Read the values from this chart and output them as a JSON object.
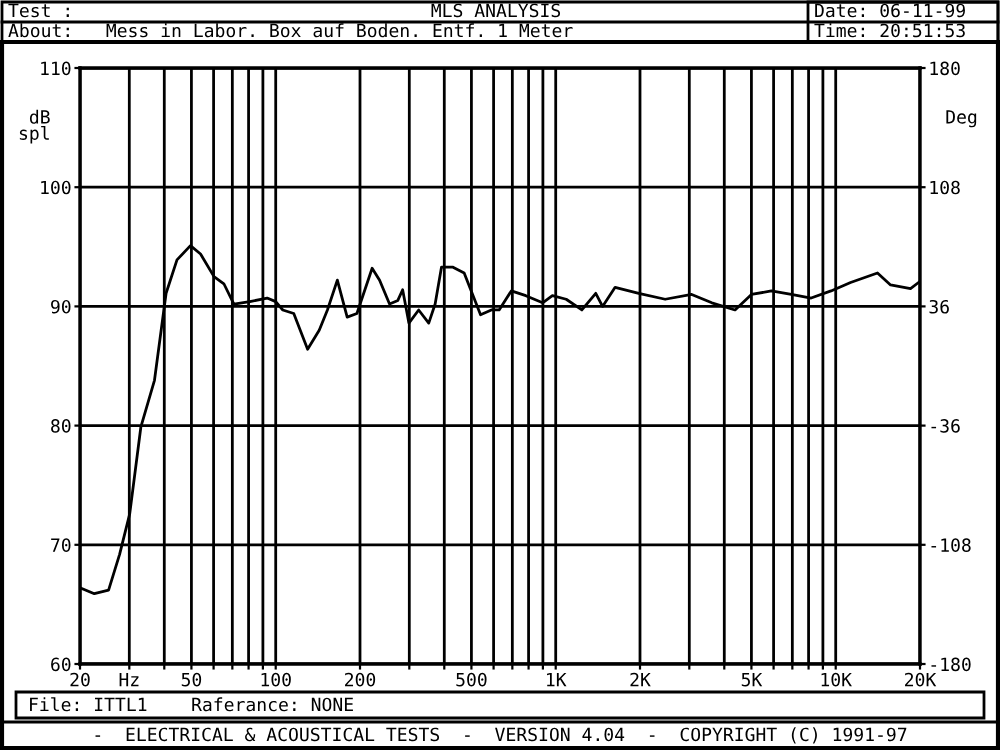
{
  "chart_data": {
    "type": "line",
    "title": "MLS ANALYSIS",
    "xlabel": null,
    "ylabel": "dB\nspl",
    "y2label": "Deg",
    "annotations": [
      "Test :",
      "About:   Mess in Labor. Box auf Boden. Entf. 1 Meter",
      "Date: 06-11-99",
      "Time: 20:51:53",
      "File: ITTL1    Raferance: NONE",
      "-  ELECTRICAL & ACOUSTICAL TESTS  -  VERSION 4.04  -  COPYRIGHT (C) 1991-97"
    ],
    "series": [
      {
        "color": "#000000",
        "x": [
          20,
          22.5,
          25.3,
          27.7,
          30.1,
          33.0,
          36.9,
          40.6,
          44.4,
          49.6,
          53.9,
          60.2,
          65.3,
          70.9,
          80.8,
          93.2,
          100,
          106,
          116,
          130,
          143,
          153,
          166,
          180,
          195,
          221,
          235,
          255,
          273,
          284,
          299,
          324,
          352,
          371,
          391,
          428,
          471,
          539,
          589,
          628,
          694,
          782,
          898,
          973,
          1090,
          1240,
          1390,
          1470,
          1630,
          1980,
          2460,
          3060,
          3610,
          4370,
          5000,
          5890,
          6940,
          8170,
          9620,
          11300,
          14100,
          15700,
          18500,
          20000
        ],
        "values": [
          66.4,
          65.9,
          66.2,
          69.2,
          72.6,
          79.9,
          83.8,
          91.1,
          93.9,
          95.1,
          94.4,
          92.5,
          91.9,
          90.2,
          90.4,
          90.7,
          90.4,
          89.7,
          89.4,
          86.4,
          88.0,
          89.7,
          92.2,
          89.1,
          89.4,
          93.2,
          92.2,
          90.2,
          90.5,
          91.4,
          88.6,
          89.7,
          88.6,
          90.2,
          93.3,
          93.3,
          92.8,
          89.3,
          89.7,
          89.7,
          91.3,
          90.9,
          90.3,
          90.9,
          90.6,
          89.7,
          91.1,
          90.0,
          91.6,
          91.1,
          90.6,
          91.0,
          90.3,
          89.7,
          91.0,
          91.3,
          91.0,
          90.7,
          91.3,
          92.0,
          92.8,
          91.8,
          91.5,
          92.1
        ]
      }
    ],
    "log": "x",
    "xlim": [
      20,
      20000
    ],
    "xticks": [
      20,
      {
        "value": 30,
        "label": "Hz"
      },
      {
        "value": 40,
        "label": null
      },
      50,
      {
        "value": 60,
        "label": null
      },
      {
        "value": 70,
        "label": null
      },
      {
        "value": 80,
        "label": null
      },
      {
        "value": 90,
        "label": null
      },
      100,
      200,
      {
        "value": 300,
        "label": null
      },
      {
        "value": 400,
        "label": null
      },
      500,
      {
        "value": 600,
        "label": null
      },
      {
        "value": 700,
        "label": null
      },
      {
        "value": 800,
        "label": null
      },
      {
        "value": 900,
        "label": null
      },
      {
        "value": 1000,
        "label": "1K"
      },
      {
        "value": 2000,
        "label": "2K"
      },
      {
        "value": 3000,
        "label": null
      },
      {
        "value": 4000,
        "label": null
      },
      {
        "value": 5000,
        "label": "5K"
      },
      {
        "value": 6000,
        "label": null
      },
      {
        "value": 7000,
        "label": null
      },
      {
        "value": 8000,
        "label": null
      },
      {
        "value": 9000,
        "label": null
      },
      {
        "value": 10000,
        "label": "10K"
      },
      {
        "value": 20000,
        "label": "20K"
      }
    ],
    "ylim": [
      60,
      110
    ],
    "yticks": [
      60,
      70,
      80,
      90,
      100,
      110
    ],
    "y2lim": [
      -180,
      180
    ],
    "y2ticks": [
      -180,
      -108,
      -36,
      36,
      108,
      180
    ],
    "grid": true,
    "legend": false,
    "marker": "none",
    "line_style": "solid"
  }
}
